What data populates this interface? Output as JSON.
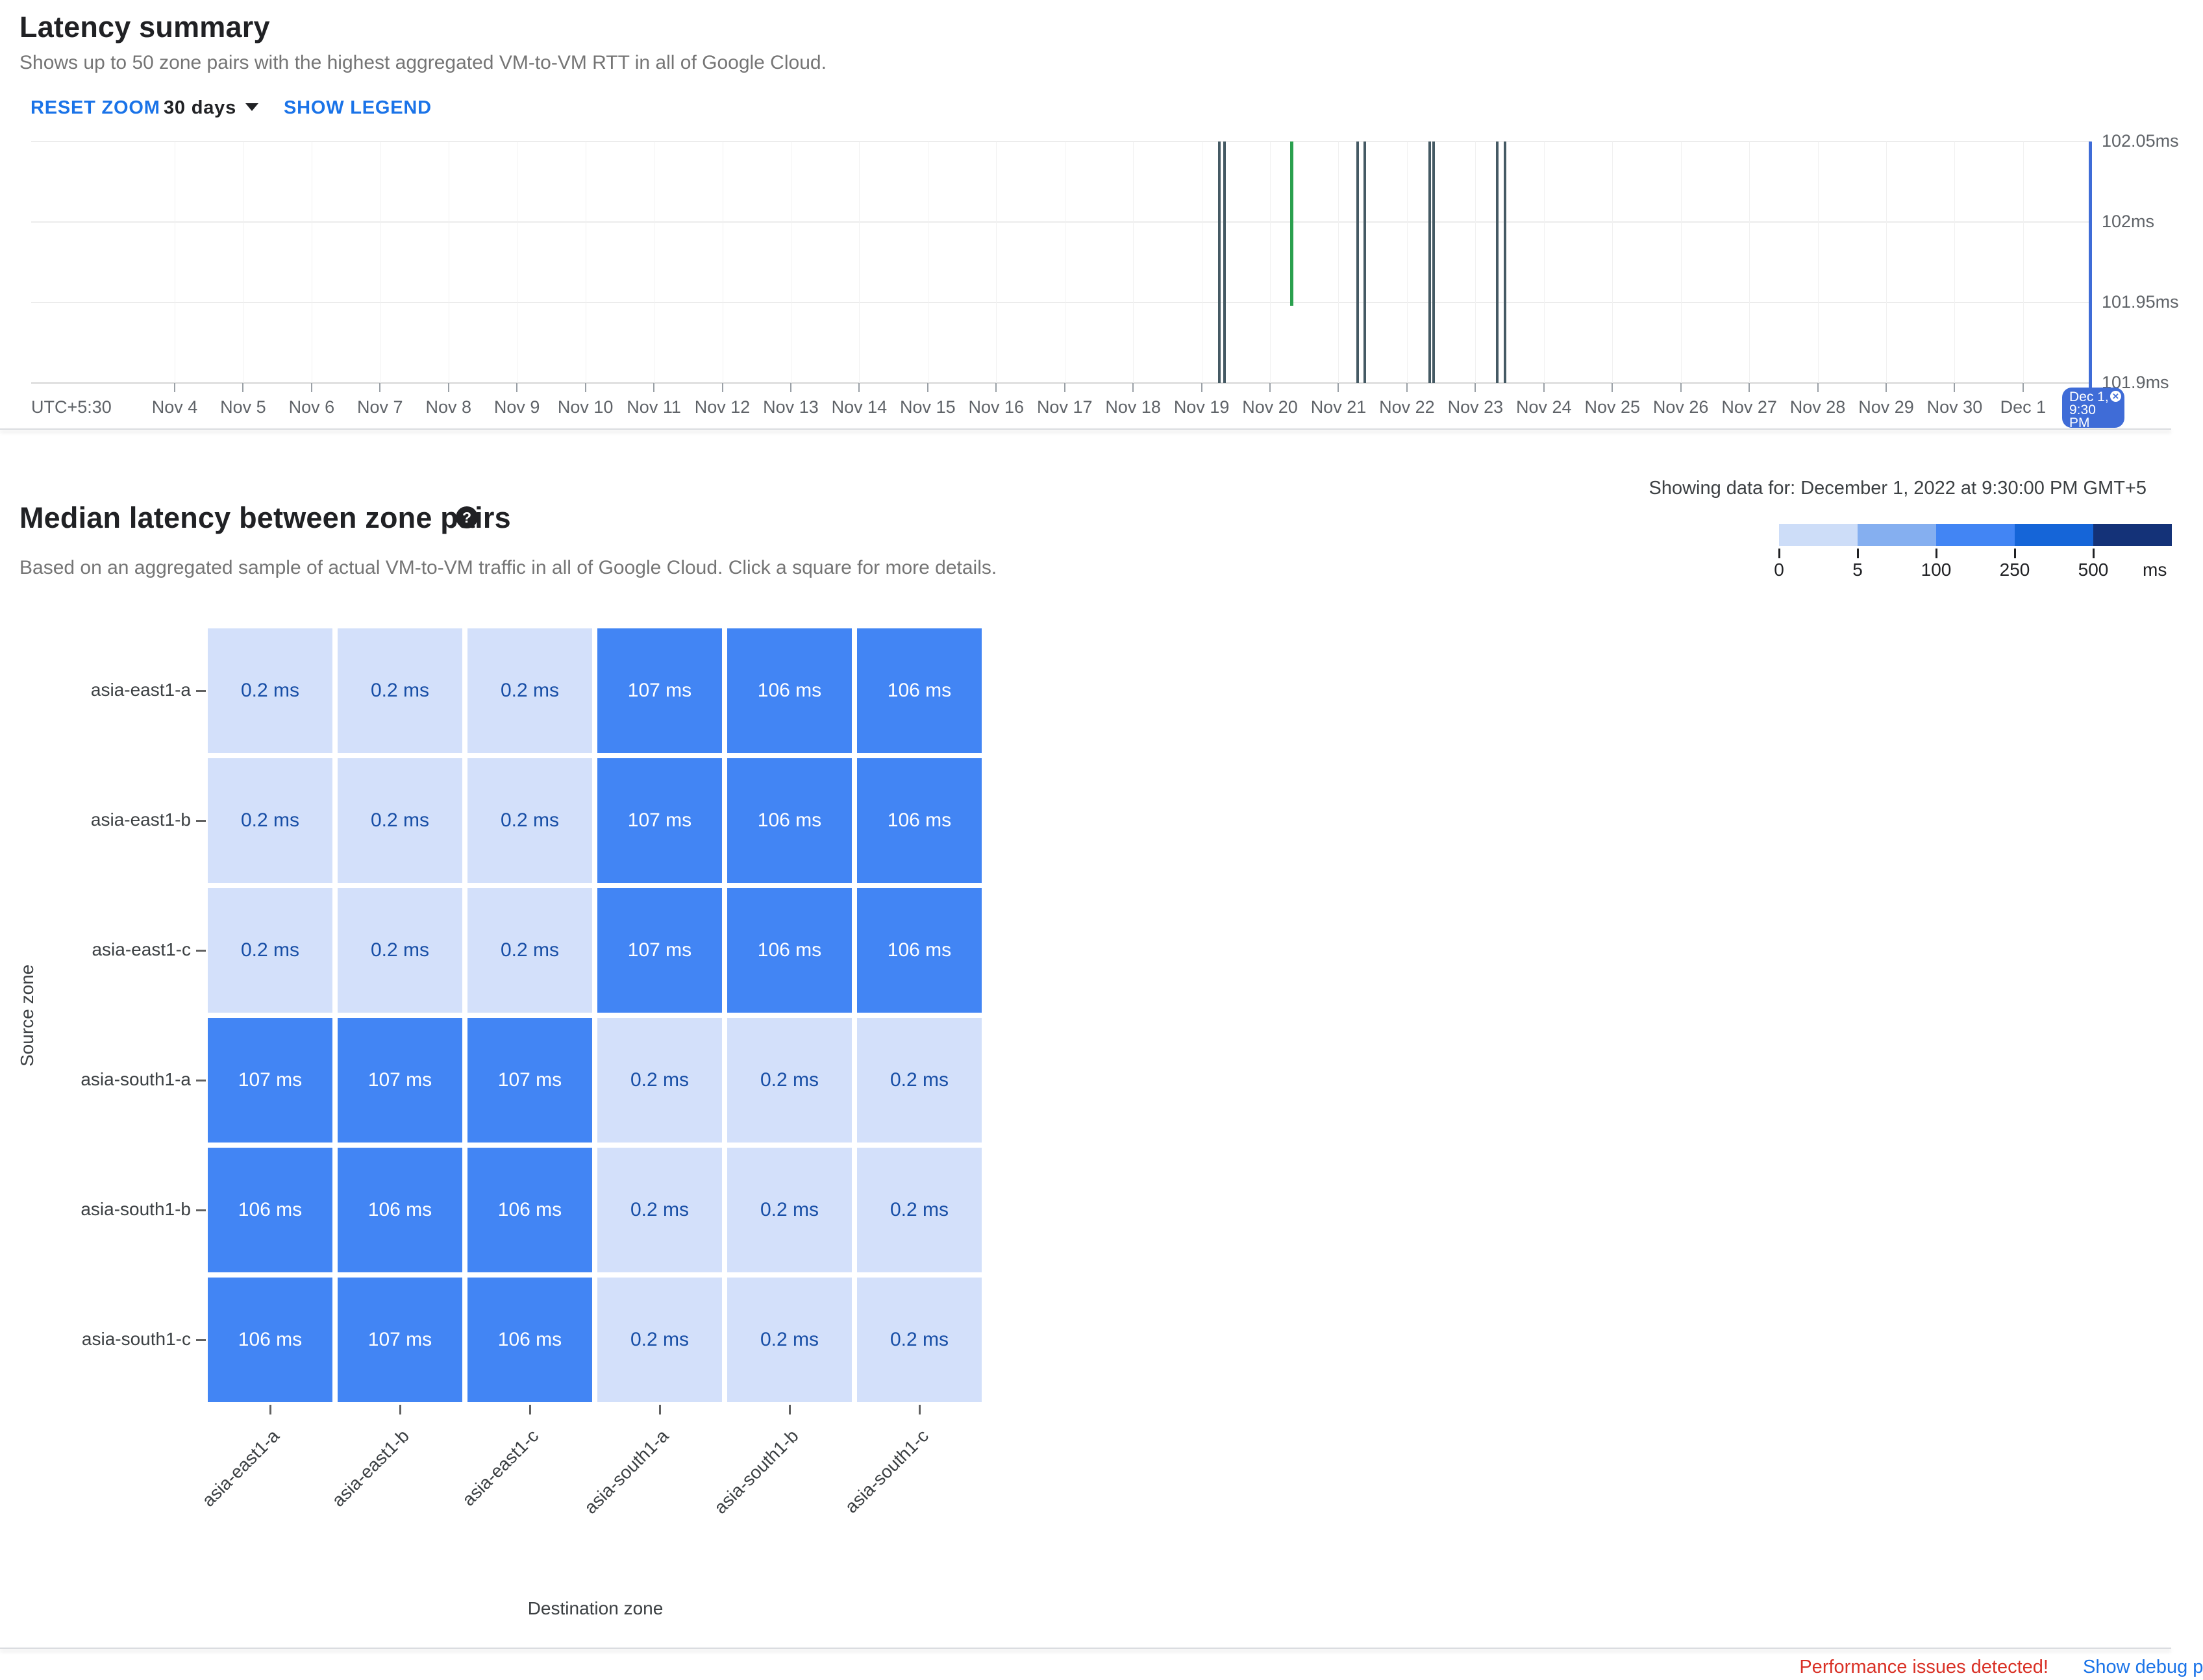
{
  "colors": {
    "accent_blue": "#1a73e8",
    "text_dark": "#202124",
    "text_gray": "#5f6368",
    "subtitle_gray": "#757575",
    "warning_red": "#d93025",
    "spike_dark": "#455a64",
    "spike_green": "#2aa04e",
    "selector_blue": "#3f6cd7",
    "cell_low": "#d3e0fa",
    "cell_high": "#4285f4",
    "cell_low_text": "#174ea6",
    "cell_high_text": "#ffffff",
    "legend_scale": [
      "#cdddf8",
      "#85aff0",
      "#4285f4",
      "#1565d8",
      "#143278"
    ]
  },
  "latency_summary": {
    "title": "Latency summary",
    "subtitle": "Shows up to 50 zone pairs with the highest aggregated VM-to-VM RTT in all of Google Cloud.",
    "toolbar": {
      "reset_zoom_label": "RESET ZOOM",
      "range_label": "30 days",
      "show_legend_label": "SHOW LEGEND"
    }
  },
  "heatmap_section": {
    "title": "Median latency between zone pairs",
    "help_glyph": "?",
    "subtitle": "Based on an aggregated sample of actual VM-to-VM traffic in all of Google Cloud. Click a square for more details.",
    "showing_data_for": "Showing data for: December 1, 2022 at 9:30:00 PM GMT+5",
    "source_zone_label": "Source zone",
    "destination_zone_label": "Destination zone",
    "legend_unit": "ms"
  },
  "footer": {
    "warning": "Performance issues detected!",
    "debug_link": "Show debug p"
  },
  "chart_data": [
    {
      "type": "line",
      "title": "Latency summary",
      "timezone": "UTC+5:30",
      "x_ticks": [
        "Nov 4",
        "Nov 5",
        "Nov 6",
        "Nov 7",
        "Nov 8",
        "Nov 9",
        "Nov 10",
        "Nov 11",
        "Nov 12",
        "Nov 13",
        "Nov 14",
        "Nov 15",
        "Nov 16",
        "Nov 17",
        "Nov 18",
        "Nov 19",
        "Nov 20",
        "Nov 21",
        "Nov 22",
        "Nov 23",
        "Nov 24",
        "Nov 25",
        "Nov 26",
        "Nov 27",
        "Nov 28",
        "Nov 29",
        "Nov 30",
        "Dec 1"
      ],
      "y_ticks": [
        "102.05ms",
        "102ms",
        "101.95ms",
        "101.9ms"
      ],
      "ylim": [
        101.9,
        102.05
      ],
      "unit": "ms",
      "grid": true,
      "selected_time": {
        "label": "Dec 1, 9:30 PM",
        "label_lines": [
          "Dec 1,",
          "9:30",
          "PM"
        ],
        "x_pct": 100
      },
      "spikes": [
        {
          "near": "Nov 19",
          "x_pct": 57.7,
          "top_pct": 0,
          "bottom_pct": 100,
          "series": "dark"
        },
        {
          "near": "Nov 19",
          "x_pct": 57.95,
          "top_pct": 0,
          "bottom_pct": 100,
          "series": "dark"
        },
        {
          "near": "Nov 20",
          "x_pct": 61.2,
          "top_pct": 0,
          "bottom_pct": 68,
          "series": "green"
        },
        {
          "near": "Nov 21",
          "x_pct": 64.4,
          "top_pct": 0,
          "bottom_pct": 100,
          "series": "dark"
        },
        {
          "near": "Nov 21",
          "x_pct": 64.75,
          "top_pct": 0,
          "bottom_pct": 100,
          "series": "dark"
        },
        {
          "near": "Nov 22",
          "x_pct": 67.9,
          "top_pct": 0,
          "bottom_pct": 100,
          "series": "dark"
        },
        {
          "near": "Nov 22",
          "x_pct": 68.1,
          "top_pct": 0,
          "bottom_pct": 100,
          "series": "dark"
        },
        {
          "near": "Nov 23",
          "x_pct": 71.2,
          "top_pct": 0,
          "bottom_pct": 100,
          "series": "dark"
        },
        {
          "near": "Nov 23",
          "x_pct": 71.55,
          "top_pct": 0,
          "bottom_pct": 100,
          "series": "dark"
        }
      ]
    },
    {
      "type": "heatmap",
      "title": "Median latency between zone pairs",
      "rows": [
        "asia-east1-a",
        "asia-east1-b",
        "asia-east1-c",
        "asia-south1-a",
        "asia-south1-b",
        "asia-south1-c"
      ],
      "cols": [
        "asia-east1-a",
        "asia-east1-b",
        "asia-east1-c",
        "asia-south1-a",
        "asia-south1-b",
        "asia-south1-c"
      ],
      "values": [
        [
          0.2,
          0.2,
          0.2,
          107,
          106,
          106
        ],
        [
          0.2,
          0.2,
          0.2,
          107,
          106,
          106
        ],
        [
          0.2,
          0.2,
          0.2,
          107,
          106,
          106
        ],
        [
          107,
          107,
          107,
          0.2,
          0.2,
          0.2
        ],
        [
          106,
          106,
          106,
          0.2,
          0.2,
          0.2
        ],
        [
          106,
          107,
          106,
          0.2,
          0.2,
          0.2
        ]
      ],
      "unit": "ms",
      "xlabel": "Destination zone",
      "ylabel": "Source zone",
      "color_scale": {
        "ticks": [
          0,
          5,
          100,
          250,
          500
        ],
        "unit_label": "ms"
      }
    }
  ]
}
